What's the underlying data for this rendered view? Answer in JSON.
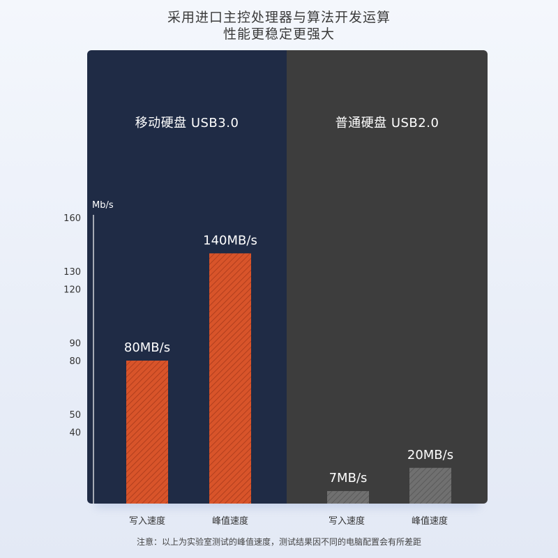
{
  "headline": {
    "line1": "采用进口主控处理器与算法开发运算",
    "line2": "性能更稳定更强大"
  },
  "panels": {
    "left_title": "移动硬盘 USB3.0",
    "right_title": "普通硬盘 USB2.0",
    "left_color": "#1f2b45",
    "right_color": "#3d3d3d"
  },
  "footnote": "注意：以上为实验室测试的峰值速度，测试结果因不同的电脑配置会有所差距",
  "chart_data": {
    "type": "bar",
    "ylabel": "Mb/s",
    "ylim": [
      0,
      160
    ],
    "yticks": [
      "160",
      "130",
      "120",
      "90",
      "80",
      "50",
      "40"
    ],
    "groups": [
      {
        "name": "移动硬盘 USB3.0",
        "bars": [
          {
            "category": "写入速度",
            "value": 80,
            "label": "80MB/s",
            "color": "#d8542a"
          },
          {
            "category": "峰值速度",
            "value": 140,
            "label": "140MB/s",
            "color": "#d8542a"
          }
        ]
      },
      {
        "name": "普通硬盘 USB2.0",
        "bars": [
          {
            "category": "写入速度",
            "value": 7,
            "label": "7MB/s",
            "color": "#6f6f6f"
          },
          {
            "category": "峰值速度",
            "value": 20,
            "label": "20MB/s",
            "color": "#6f6f6f"
          }
        ]
      }
    ],
    "grid": false
  }
}
